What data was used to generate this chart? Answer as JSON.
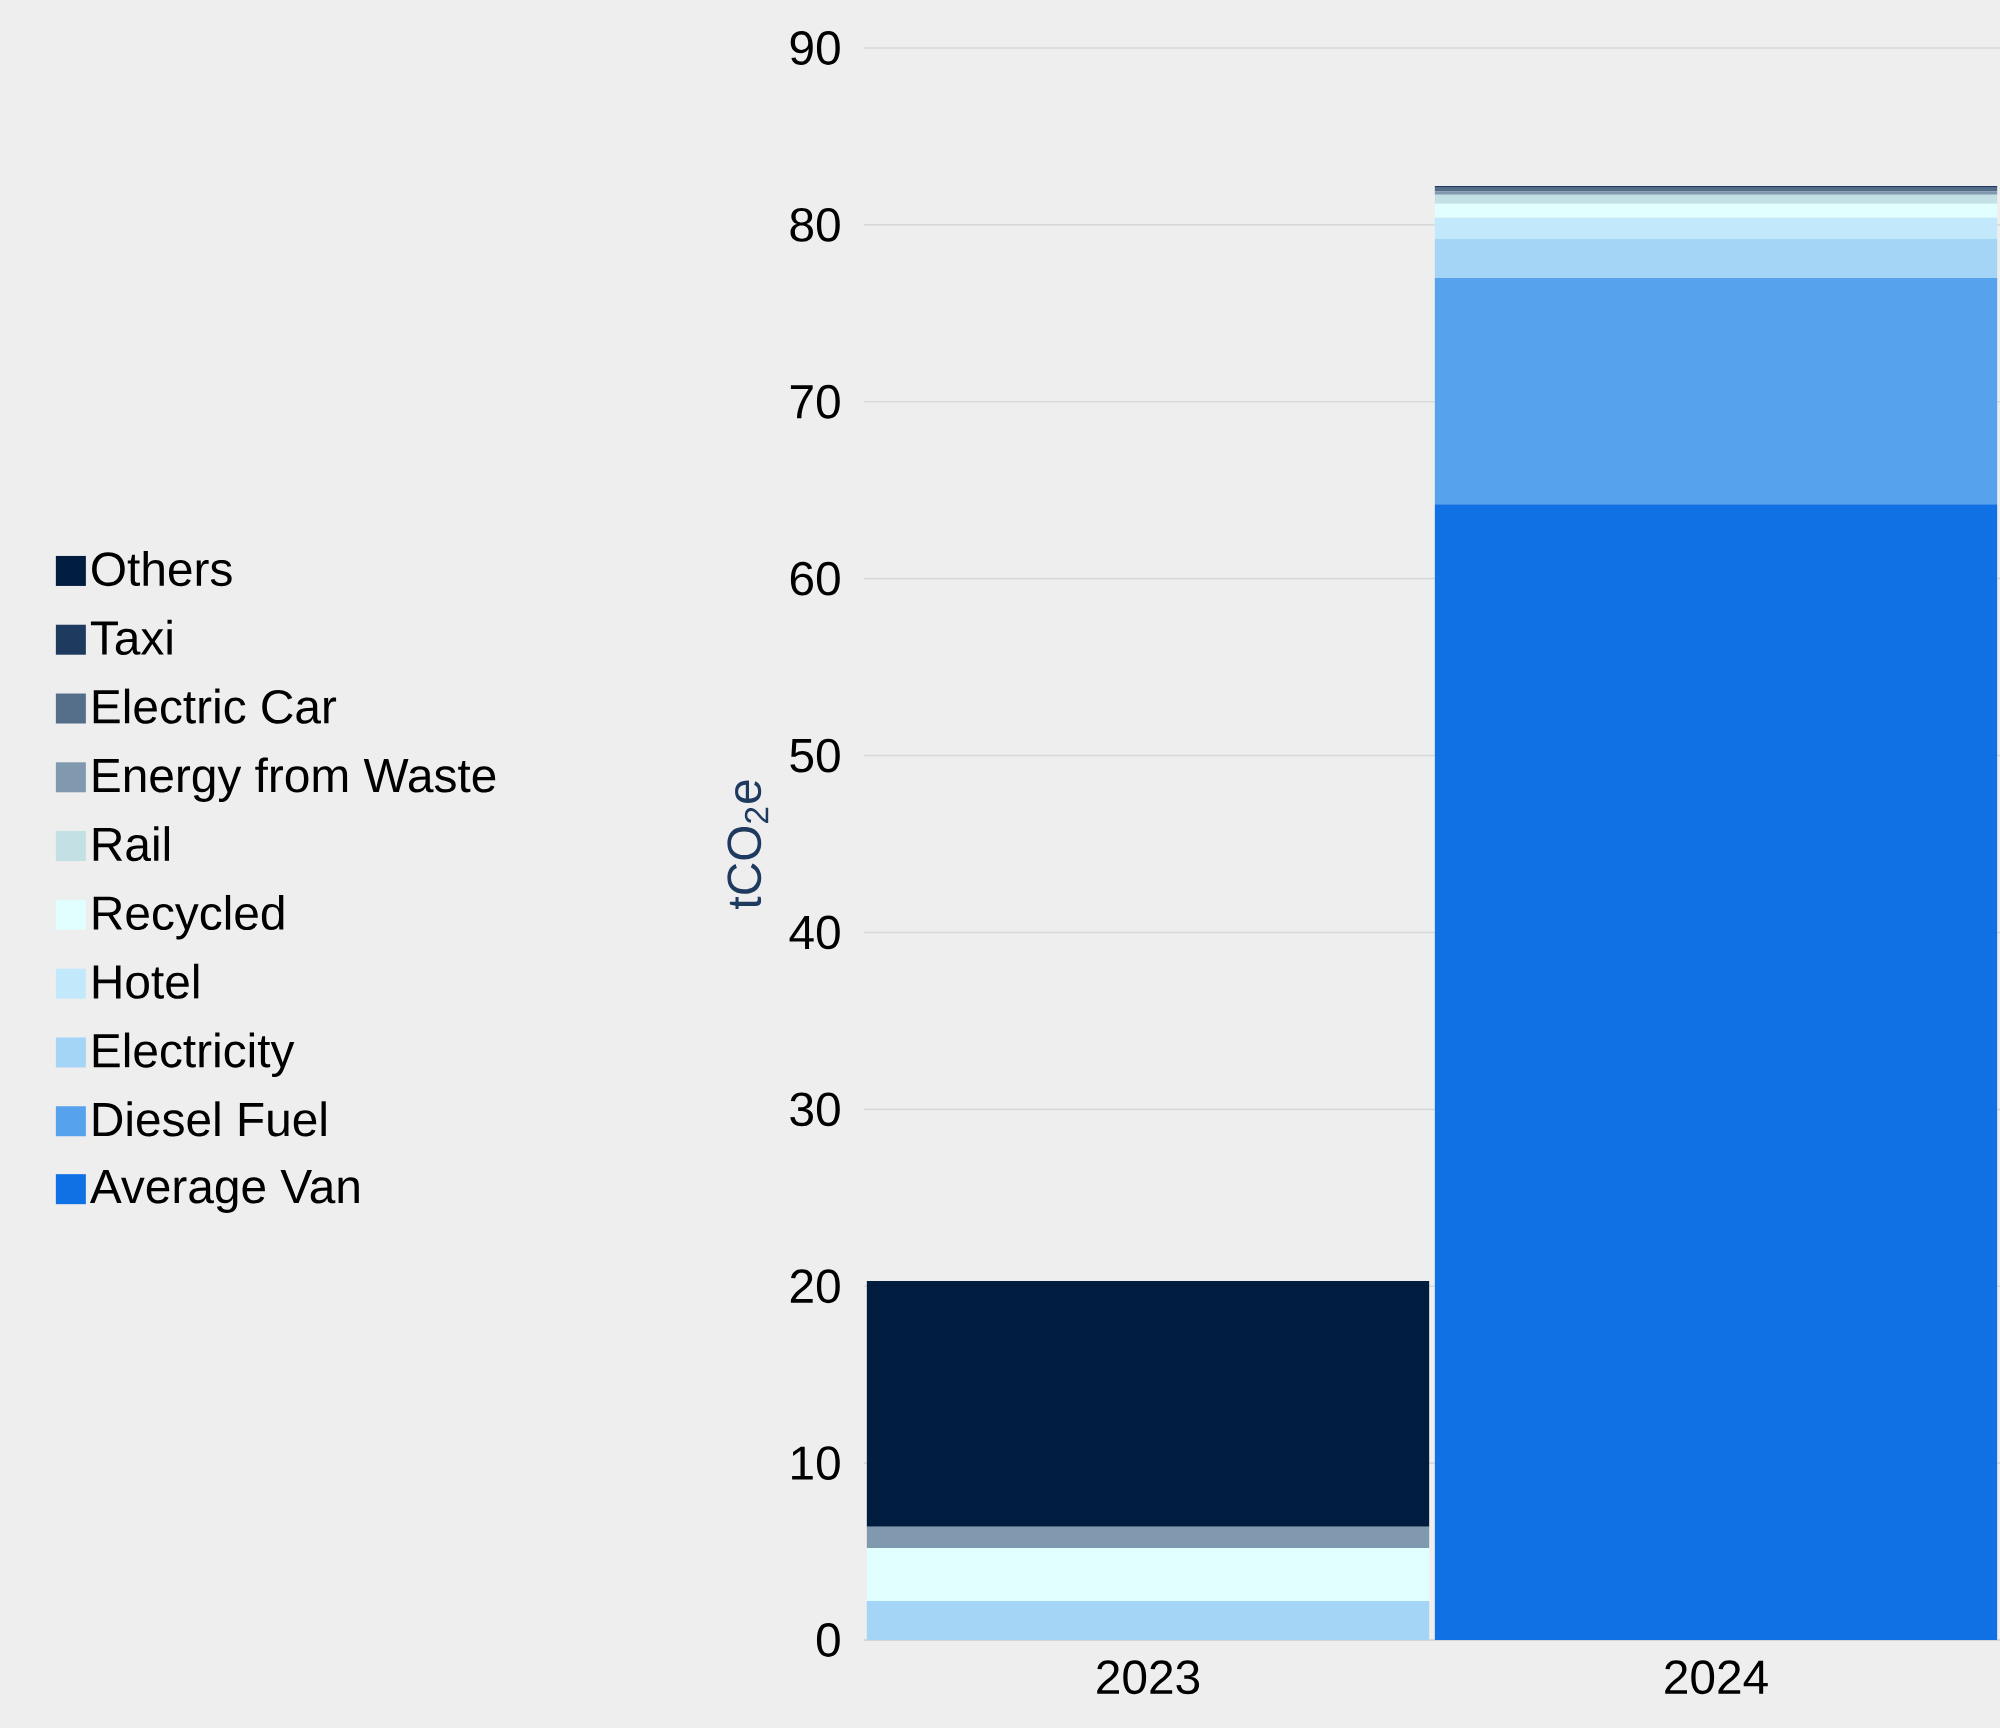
{
  "chart_data": {
    "type": "bar",
    "stacked": true,
    "ylabel": "tCO$_{2}$e",
    "categories": [
      "2023",
      "2024"
    ],
    "series": [
      {
        "name": "Average Van",
        "color": "#1071e5",
        "values": [
          0,
          64.2
        ]
      },
      {
        "name": "Diesel Fuel",
        "color": "#56a2ec",
        "values": [
          0,
          12.8
        ]
      },
      {
        "name": "Electricity",
        "color": "#a5d5f6",
        "values": [
          2.2,
          2.2
        ]
      },
      {
        "name": "Hotel",
        "color": "#c2e8fb",
        "values": [
          0,
          1.2
        ]
      },
      {
        "name": "Recycled",
        "color": "#e0fffe",
        "values": [
          3.0,
          0.8
        ]
      },
      {
        "name": "Rail",
        "color": "#c3e0e5",
        "values": [
          null,
          0.5
        ]
      },
      {
        "name": "Energy from Waste",
        "color": "#8099ae",
        "values": [
          1.2,
          0.2
        ]
      },
      {
        "name": "Electric Car",
        "color": "#546e8a",
        "values": [
          0,
          0.2
        ]
      },
      {
        "name": "Taxi",
        "color": "#1f3a5f",
        "values": [
          0,
          0.1
        ]
      },
      {
        "name": "Others",
        "color": "#001d40",
        "values": [
          13.9,
          0
        ]
      }
    ],
    "ylim": [
      0,
      90
    ],
    "yticks": [
      0,
      10,
      20,
      30,
      40,
      50,
      60,
      70,
      80,
      90
    ],
    "grid": "y",
    "legend": "left"
  }
}
